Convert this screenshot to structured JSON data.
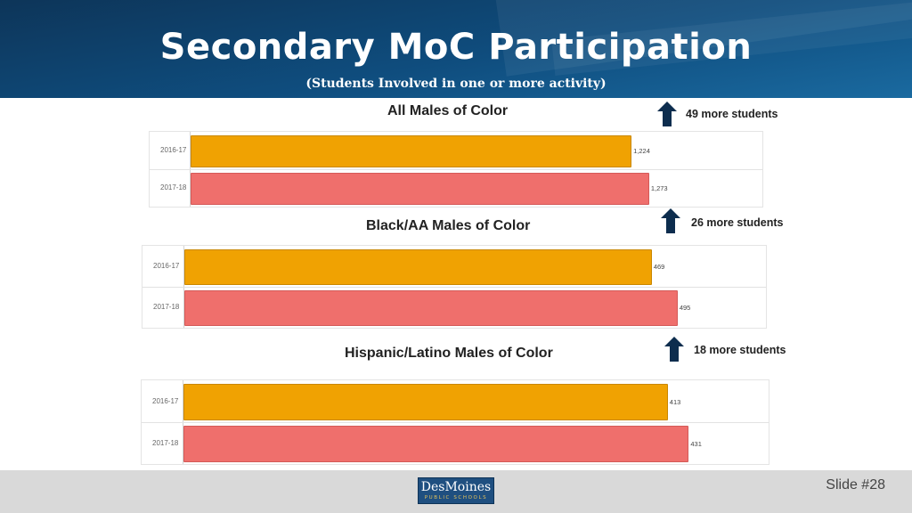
{
  "header": {
    "title": "Secondary MoC Participation",
    "subtitle": "(Students Involved in one or more activity)"
  },
  "colors": {
    "header_bg": "#0f4d7e",
    "bar_2016": "#f0a202",
    "bar_2017": "#ef6f6c",
    "arrow": "#0d2d4e"
  },
  "icons": {
    "increase": "up-arrow-icon"
  },
  "chart_data": [
    {
      "type": "bar",
      "orientation": "horizontal",
      "title": "All Males of Color",
      "categories": [
        "2016-17",
        "2017-18"
      ],
      "values": [
        1224,
        1273
      ],
      "value_labels": [
        "1,224",
        "1,273"
      ],
      "change_note": "49 more  students",
      "xlim": [
        0,
        1400
      ]
    },
    {
      "type": "bar",
      "orientation": "horizontal",
      "title": "Black/AA Males of Color",
      "categories": [
        "2016-17",
        "2017-18"
      ],
      "values": [
        469,
        495
      ],
      "value_labels": [
        "469",
        "495"
      ],
      "change_note": "26 more  students",
      "xlim": [
        0,
        540
      ]
    },
    {
      "type": "bar",
      "orientation": "horizontal",
      "title": "Hispanic/Latino Males of Color",
      "categories": [
        "2016-17",
        "2017-18"
      ],
      "values": [
        413,
        431
      ],
      "value_labels": [
        "413",
        "431"
      ],
      "change_note": "18 more  students",
      "xlim": [
        0,
        465
      ]
    }
  ],
  "footer": {
    "slide_number": "Slide #28",
    "logo_main": "DesMoines",
    "logo_sub": "PUBLIC SCHOOLS"
  }
}
